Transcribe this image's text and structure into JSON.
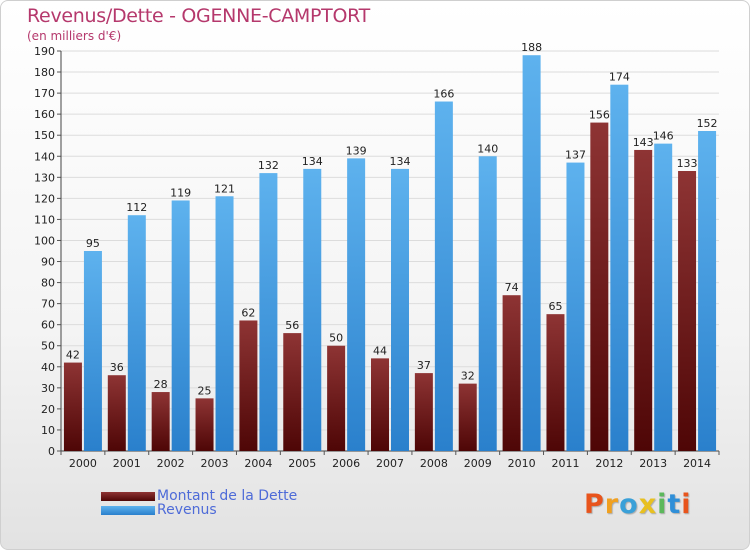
{
  "chart_data": {
    "type": "bar",
    "title": "Revenus/Dette - OGENNE-CAMPTORT",
    "subtitle": "(en milliers d'€)",
    "categories": [
      "2000",
      "2001",
      "2002",
      "2003",
      "2004",
      "2005",
      "2006",
      "2007",
      "2008",
      "2009",
      "2010",
      "2011",
      "2012",
      "2013",
      "2014"
    ],
    "series": [
      {
        "name": "Montant de la Dette",
        "color": "#7a1f1f",
        "values": [
          42,
          36,
          28,
          25,
          62,
          56,
          50,
          44,
          37,
          32,
          74,
          65,
          156,
          143,
          133
        ]
      },
      {
        "name": "Revenus",
        "color": "#3a9ae0",
        "values": [
          95,
          112,
          119,
          121,
          132,
          134,
          139,
          134,
          166,
          140,
          188,
          137,
          174,
          146,
          152
        ]
      }
    ],
    "ylim": [
      0,
      190
    ],
    "ytick_step": 10,
    "grid": "horizontal",
    "legend_position": "bottom-left",
    "xlabel": "",
    "ylabel": ""
  },
  "logo": {
    "letters": [
      "P",
      "r",
      "o",
      "x",
      "i",
      "t",
      "i"
    ],
    "colors": [
      "#e8541c",
      "#f0a020",
      "#3aa0d8",
      "#e8c020",
      "#5cb85c",
      "#2f8fd8",
      "#e8541c"
    ]
  }
}
